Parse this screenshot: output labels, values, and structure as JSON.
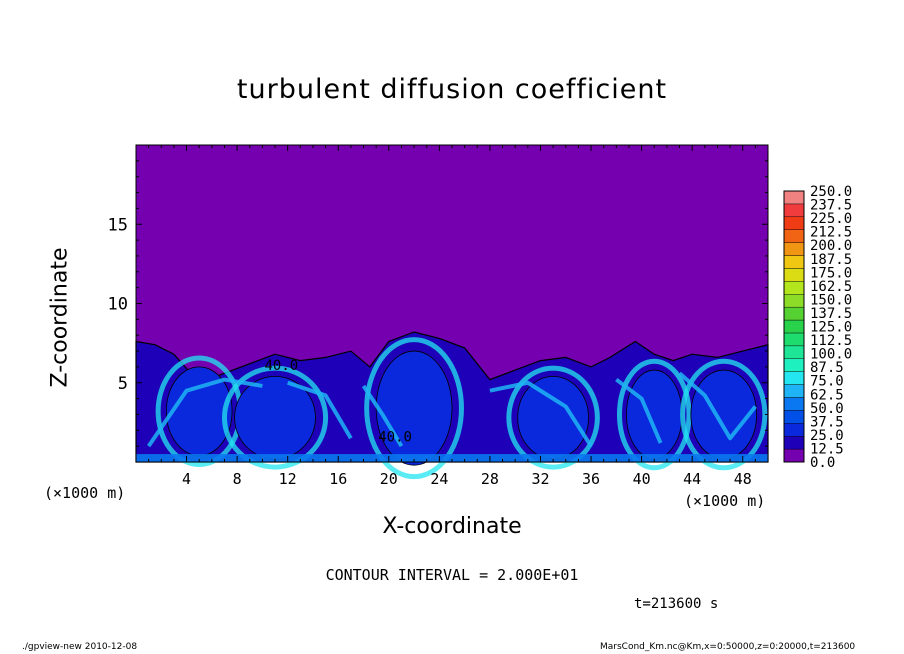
{
  "chart_data": {
    "type": "heatmap",
    "title": "turbulent diffusion coefficient",
    "xlabel": "X-coordinate",
    "ylabel": "Z-coordinate",
    "x_unit": "(×1000 m)",
    "x_unit_right": "(×1000 m)",
    "xlim": [
      0,
      50
    ],
    "ylim": [
      0,
      20
    ],
    "x_ticks": [
      4,
      8,
      12,
      16,
      20,
      24,
      28,
      32,
      36,
      40,
      44,
      48
    ],
    "y_ticks": [
      5,
      10,
      15
    ],
    "colorbar_levels": [
      "0.0",
      "12.5",
      "25.0",
      "37.5",
      "50.0",
      "62.5",
      "75.0",
      "87.5",
      "100.0",
      "112.5",
      "125.0",
      "137.5",
      "150.0",
      "162.5",
      "175.0",
      "187.5",
      "200.0",
      "212.5",
      "225.0",
      "237.5",
      "250.0"
    ],
    "colors": [
      "#7400b0",
      "#1d00b8",
      "#0a28dc",
      "#0050e8",
      "#0a78f0",
      "#1eb4f5",
      "#23e6f0",
      "#1ef0c0",
      "#1ee696",
      "#1edc6e",
      "#28d24b",
      "#55d232",
      "#8cdc28",
      "#b4e61e",
      "#dcdc14",
      "#f0c814",
      "#f09614",
      "#f06414",
      "#f03c14",
      "#f03c3c",
      "#f08282"
    ],
    "annotations": [
      "40.0",
      "40.0"
    ],
    "contour_interval": "CONTOUR INTERVAL = 2.000E+01",
    "time": "t=213600 s"
  },
  "footer": {
    "left": "./gpview-new  2010-12-08",
    "right": "MarsCond_Km.nc@Km,x=0:50000,z=0:20000,t=213600"
  }
}
